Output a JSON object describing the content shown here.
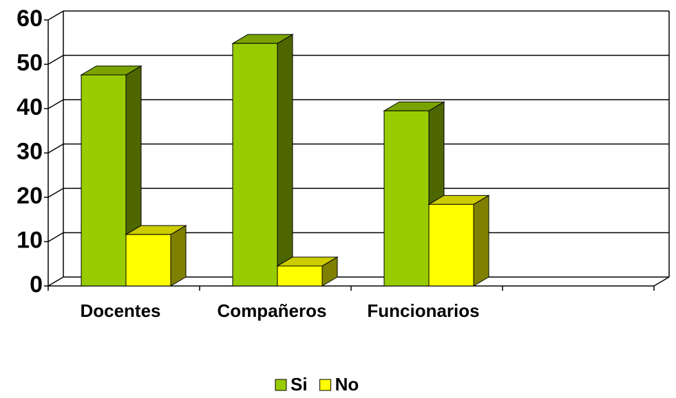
{
  "chart_data": {
    "type": "bar3d",
    "categories": [
      "Docentes",
      "Compañeros",
      "Funcionarios",
      null
    ],
    "series": [
      {
        "name": "Si",
        "color": "#99cc00",
        "values": [
          47.6,
          54.7,
          39.5,
          null
        ]
      },
      {
        "name": "No",
        "color": "#ffff00",
        "values": [
          11.6,
          4.5,
          18.4,
          null
        ]
      }
    ],
    "ylim": [
      0,
      60
    ],
    "yticks": [
      0,
      10,
      20,
      30,
      40,
      50,
      60
    ],
    "grid": true,
    "legend": "bottom"
  }
}
